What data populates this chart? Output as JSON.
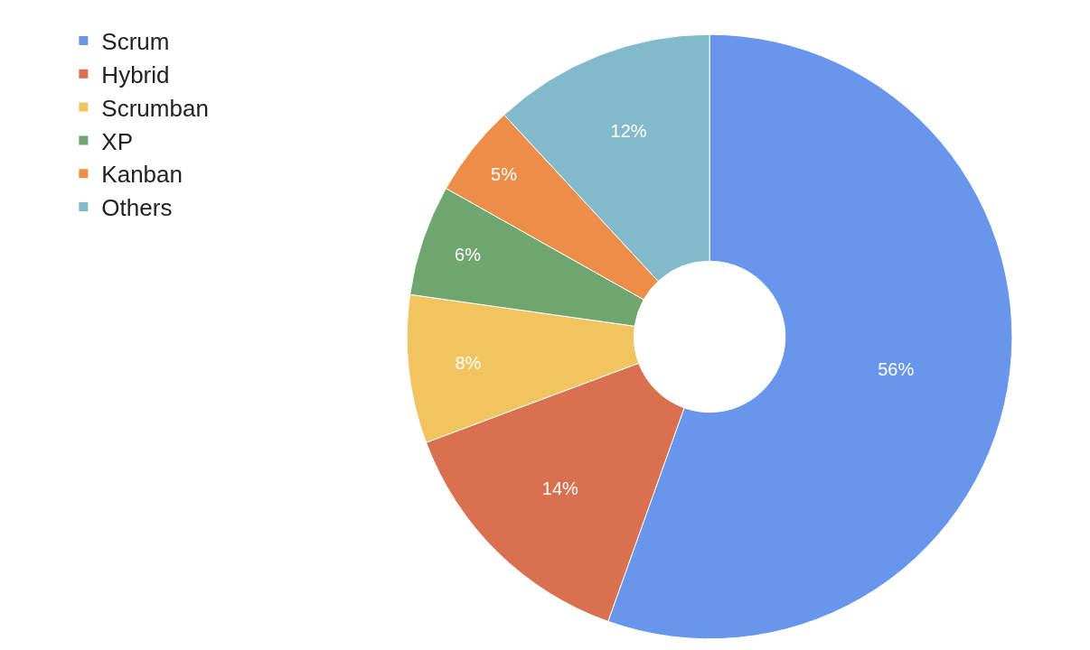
{
  "chart_data": {
    "type": "donut",
    "categories": [
      "Scrum",
      "Hybrid",
      "Scrumban",
      "XP",
      "Kanban",
      "Others"
    ],
    "values": [
      56,
      14,
      8,
      6,
      5,
      12
    ],
    "value_labels": [
      "56%",
      "14%",
      "8%",
      "6%",
      "5%",
      "12%"
    ],
    "colors": [
      "#6896ec",
      "#d9704f",
      "#f1c45f",
      "#6fa56e",
      "#ec8e47",
      "#82bacb"
    ],
    "legend": "top left"
  }
}
